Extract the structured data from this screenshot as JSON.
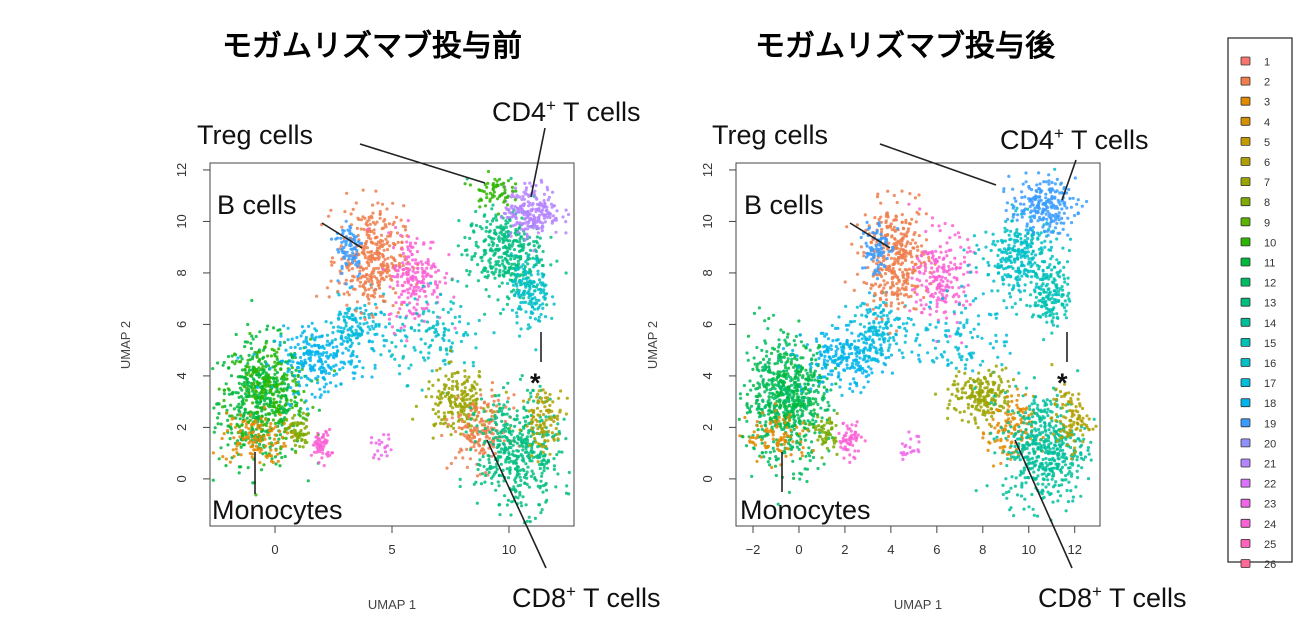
{
  "legend": {
    "labels": [
      "1",
      "2",
      "3",
      "4",
      "5",
      "6",
      "7",
      "8",
      "9",
      "10",
      "11",
      "12",
      "13",
      "14",
      "15",
      "16",
      "17",
      "18",
      "19",
      "20",
      "21",
      "22",
      "23",
      "24",
      "25",
      "26"
    ],
    "colors": [
      "#F8766D",
      "#EE7E4C",
      "#E38900",
      "#D69100",
      "#C59A00",
      "#B09F00",
      "#9AA400",
      "#7FAA00",
      "#5BB300",
      "#2DB600",
      "#00B93C",
      "#00BC62",
      "#00BE80",
      "#00C09B",
      "#00C1B3",
      "#00BFC7",
      "#00BBDA",
      "#00B4EC",
      "#3A9CFF",
      "#8F91FF",
      "#B584FF",
      "#DB72FB",
      "#F066EA",
      "#FA62D6",
      "#FF62BC",
      "#FF6A98"
    ]
  },
  "chart_data": [
    {
      "type": "scatter",
      "title": "モガムリズマブ投与前",
      "xlabel": "UMAP 1",
      "ylabel": "UMAP 2",
      "xlim": [
        -2.78,
        12.78
      ],
      "ylim": [
        -1.83,
        12.27
      ],
      "xticks": [
        "0",
        "5",
        "10"
      ],
      "xtick_values": [
        0,
        5,
        10
      ],
      "yticks": [
        "0",
        "2",
        "4",
        "6",
        "8",
        "10",
        "12"
      ],
      "ytick_values": [
        0,
        2,
        4,
        6,
        8,
        10,
        12
      ],
      "annotations": [
        {
          "text": "Treg cells",
          "sup": ""
        },
        {
          "text": "CD4",
          "sup": "+",
          "rest": " T cells"
        },
        {
          "text": "B cells",
          "sup": ""
        },
        {
          "text": "Monocytes",
          "sup": ""
        },
        {
          "text": "CD8",
          "sup": "+",
          "rest": " T cells"
        },
        {
          "text": "*",
          "sup": ""
        }
      ],
      "clusters": [
        {
          "id": 11,
          "cx": -0.6,
          "cy": 3.0,
          "sx": 0.9,
          "sy": 1.2,
          "n": 500
        },
        {
          "id": 10,
          "cx": -0.3,
          "cy": 3.4,
          "sx": 0.9,
          "sy": 1.0,
          "n": 200
        },
        {
          "id": 3,
          "cx": -0.9,
          "cy": 1.6,
          "sx": 0.7,
          "sy": 0.5,
          "n": 120
        },
        {
          "id": 8,
          "cx": 1.0,
          "cy": 1.8,
          "sx": 0.25,
          "sy": 0.35,
          "n": 60
        },
        {
          "id": 24,
          "cx": 2.0,
          "cy": 1.3,
          "sx": 0.2,
          "sy": 0.3,
          "n": 60
        },
        {
          "id": 23,
          "cx": 4.6,
          "cy": 1.3,
          "sx": 0.25,
          "sy": 0.25,
          "n": 20
        },
        {
          "id": 18,
          "cx": 1.8,
          "cy": 4.6,
          "sx": 0.9,
          "sy": 0.6,
          "n": 220
        },
        {
          "id": 17,
          "cx": 3.5,
          "cy": 5.8,
          "sx": 0.7,
          "sy": 0.6,
          "n": 150
        },
        {
          "id": 2,
          "cx": 4.1,
          "cy": 8.6,
          "sx": 0.7,
          "sy": 1.0,
          "n": 350
        },
        {
          "id": 19,
          "cx": 3.2,
          "cy": 9.0,
          "sx": 0.3,
          "sy": 0.6,
          "n": 80
        },
        {
          "id": 24,
          "cx": 6.0,
          "cy": 7.8,
          "sx": 0.6,
          "sy": 0.9,
          "n": 200
        },
        {
          "id": 13,
          "cx": 9.8,
          "cy": 8.8,
          "sx": 0.8,
          "sy": 0.8,
          "n": 350
        },
        {
          "id": 21,
          "cx": 11.0,
          "cy": 10.4,
          "sx": 0.6,
          "sy": 0.5,
          "n": 220
        },
        {
          "id": 10,
          "cx": 9.3,
          "cy": 11.2,
          "sx": 0.4,
          "sy": 0.3,
          "n": 60
        },
        {
          "id": 16,
          "cx": 10.9,
          "cy": 7.2,
          "sx": 0.4,
          "sy": 0.7,
          "n": 150
        },
        {
          "id": 16,
          "cx": 7.0,
          "cy": 5.5,
          "sx": 1.0,
          "sy": 0.8,
          "n": 120
        },
        {
          "id": 7,
          "cx": 7.8,
          "cy": 3.0,
          "sx": 0.7,
          "sy": 0.6,
          "n": 200
        },
        {
          "id": 2,
          "cx": 8.8,
          "cy": 1.8,
          "sx": 0.6,
          "sy": 0.7,
          "n": 160
        },
        {
          "id": 13,
          "cx": 10.4,
          "cy": 1.0,
          "sx": 0.9,
          "sy": 1.1,
          "n": 450
        },
        {
          "id": 6,
          "cx": 11.5,
          "cy": 2.3,
          "sx": 0.4,
          "sy": 0.6,
          "n": 100
        }
      ]
    },
    {
      "type": "scatter",
      "title": "モガムリズマブ投与後",
      "xlabel": "UMAP 1",
      "ylabel": "UMAP 2",
      "xlim": [
        -2.74,
        13.1
      ],
      "ylim": [
        -1.83,
        12.27
      ],
      "xticks": [
        "−2",
        "0",
        "2",
        "4",
        "6",
        "8",
        "10",
        "12"
      ],
      "xtick_values": [
        -2,
        0,
        2,
        4,
        6,
        8,
        10,
        12
      ],
      "yticks": [
        "0",
        "2",
        "4",
        "6",
        "8",
        "10",
        "12"
      ],
      "ytick_values": [
        0,
        2,
        4,
        6,
        8,
        10,
        12
      ],
      "annotations": [
        {
          "text": "Treg cells",
          "sup": ""
        },
        {
          "text": "CD4",
          "sup": "+",
          "rest": " T cells"
        },
        {
          "text": "B cells",
          "sup": ""
        },
        {
          "text": "Monocytes",
          "sup": ""
        },
        {
          "text": "CD8",
          "sup": "+",
          "rest": " T cells"
        },
        {
          "text": "*",
          "sup": ""
        }
      ],
      "clusters": [
        {
          "id": 12,
          "cx": -0.6,
          "cy": 3.0,
          "sx": 0.9,
          "sy": 1.2,
          "n": 520
        },
        {
          "id": 11,
          "cx": -0.3,
          "cy": 3.4,
          "sx": 0.9,
          "sy": 1.0,
          "n": 200
        },
        {
          "id": 3,
          "cx": -0.9,
          "cy": 1.6,
          "sx": 0.7,
          "sy": 0.5,
          "n": 90
        },
        {
          "id": 8,
          "cx": 1.2,
          "cy": 1.8,
          "sx": 0.25,
          "sy": 0.35,
          "n": 50
        },
        {
          "id": 24,
          "cx": 2.2,
          "cy": 1.5,
          "sx": 0.25,
          "sy": 0.35,
          "n": 60
        },
        {
          "id": 23,
          "cx": 4.8,
          "cy": 1.2,
          "sx": 0.25,
          "sy": 0.25,
          "n": 20
        },
        {
          "id": 18,
          "cx": 2.0,
          "cy": 4.6,
          "sx": 0.9,
          "sy": 0.6,
          "n": 220
        },
        {
          "id": 17,
          "cx": 3.6,
          "cy": 5.8,
          "sx": 0.7,
          "sy": 0.6,
          "n": 150
        },
        {
          "id": 2,
          "cx": 4.2,
          "cy": 8.6,
          "sx": 0.7,
          "sy": 1.0,
          "n": 350
        },
        {
          "id": 19,
          "cx": 3.3,
          "cy": 9.0,
          "sx": 0.3,
          "sy": 0.6,
          "n": 80
        },
        {
          "id": 24,
          "cx": 6.2,
          "cy": 7.8,
          "sx": 0.6,
          "sy": 0.9,
          "n": 200
        },
        {
          "id": 16,
          "cx": 9.6,
          "cy": 8.6,
          "sx": 0.8,
          "sy": 0.8,
          "n": 300
        },
        {
          "id": 19,
          "cx": 10.6,
          "cy": 10.6,
          "sx": 0.7,
          "sy": 0.5,
          "n": 220
        },
        {
          "id": 15,
          "cx": 11.0,
          "cy": 7.2,
          "sx": 0.4,
          "sy": 0.7,
          "n": 150
        },
        {
          "id": 17,
          "cx": 7.2,
          "cy": 5.5,
          "sx": 1.0,
          "sy": 0.8,
          "n": 100
        },
        {
          "id": 7,
          "cx": 8.0,
          "cy": 3.2,
          "sx": 0.7,
          "sy": 0.5,
          "n": 200
        },
        {
          "id": 3,
          "cx": 9.2,
          "cy": 1.8,
          "sx": 0.5,
          "sy": 0.7,
          "n": 120
        },
        {
          "id": 14,
          "cx": 10.7,
          "cy": 1.2,
          "sx": 0.9,
          "sy": 1.1,
          "n": 500
        },
        {
          "id": 6,
          "cx": 11.8,
          "cy": 2.3,
          "sx": 0.4,
          "sy": 0.6,
          "n": 100
        }
      ]
    }
  ]
}
